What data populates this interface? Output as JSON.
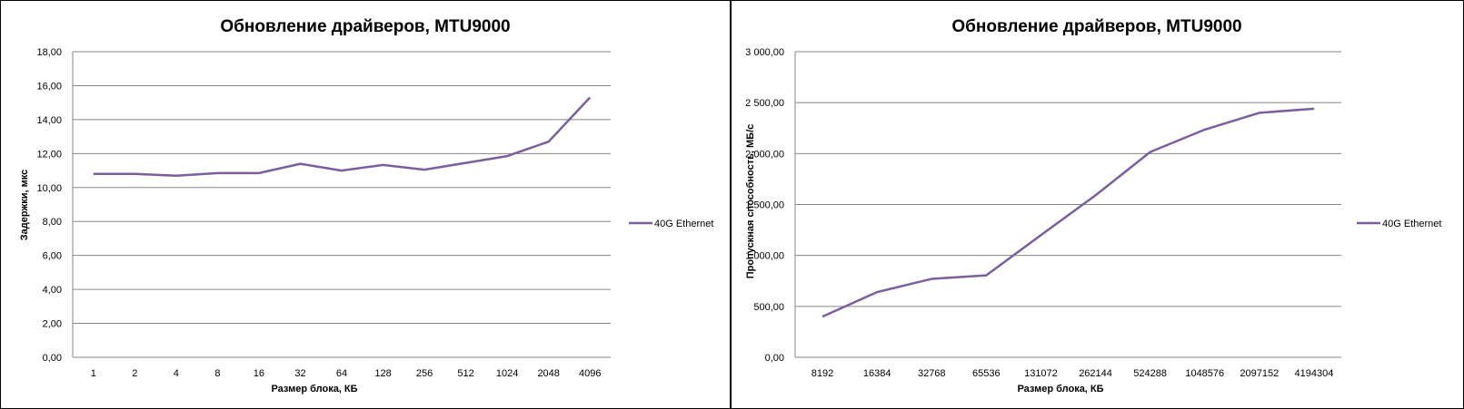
{
  "chart_data": [
    {
      "type": "line",
      "title": "Обновление драйверов, MTU9000",
      "xlabel": "Размер блока, КБ",
      "ylabel": "Задержки, мкс",
      "ylim": [
        0,
        18
      ],
      "y_ticks": [
        "0,00",
        "2,00",
        "4,00",
        "6,00",
        "8,00",
        "10,00",
        "12,00",
        "14,00",
        "16,00",
        "18,00"
      ],
      "categories": [
        "1",
        "2",
        "4",
        "8",
        "16",
        "32",
        "64",
        "128",
        "256",
        "512",
        "1024",
        "2048",
        "4096"
      ],
      "series": [
        {
          "name": "40G Ethernet",
          "values": [
            10.8,
            10.8,
            10.7,
            10.85,
            10.85,
            11.4,
            11.0,
            11.33,
            11.05,
            11.45,
            11.85,
            12.7,
            15.3
          ]
        }
      ],
      "grid": true,
      "legend": "right",
      "line_color": "#7B5E9C"
    },
    {
      "type": "line",
      "title": "Обновление драйверов, MTU9000",
      "xlabel": "Размер блока, КБ",
      "ylabel": "Пропускная  способность,  МБ/с",
      "ylim": [
        0,
        3000
      ],
      "y_ticks": [
        "0,00",
        "500,00",
        "1 000,00",
        "1 500,00",
        "2 000,00",
        "2 500,00",
        "3 000,00"
      ],
      "categories": [
        "8192",
        "16384",
        "32768",
        "65536",
        "131072",
        "262144",
        "524288",
        "1048576",
        "2097152",
        "4194304"
      ],
      "series": [
        {
          "name": "40G Ethernet",
          "values": [
            400,
            640,
            770,
            805,
            1200,
            1590,
            2015,
            2235,
            2400,
            2440
          ]
        }
      ],
      "grid": true,
      "legend": "right",
      "line_color": "#7B5E9C"
    }
  ]
}
